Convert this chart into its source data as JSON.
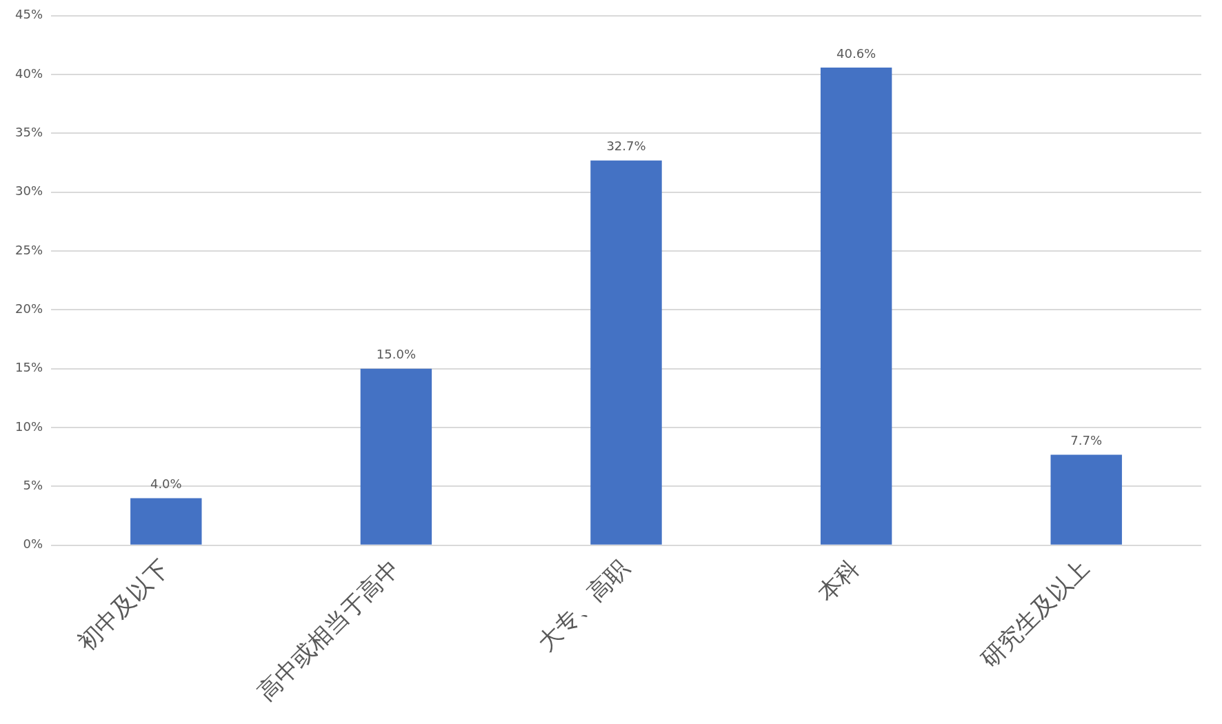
{
  "chart_data": {
    "type": "bar",
    "categories": [
      "初中及以下",
      "高中或相当于高中",
      "大专、高职",
      "本科",
      "研究生及以上"
    ],
    "values": [
      4.0,
      15.0,
      32.7,
      40.6,
      7.7
    ],
    "value_labels": [
      "4.0%",
      "15.0%",
      "32.7%",
      "40.6%",
      "7.7%"
    ],
    "color": "#4472c4",
    "ylim": [
      0,
      45
    ],
    "yticks": [
      {
        "value": 0,
        "label": "0%"
      },
      {
        "value": 5,
        "label": "5%"
      },
      {
        "value": 10,
        "label": "10%"
      },
      {
        "value": 15,
        "label": "15%"
      },
      {
        "value": 20,
        "label": "20%"
      },
      {
        "value": 25,
        "label": "25%"
      },
      {
        "value": 30,
        "label": "30%"
      },
      {
        "value": 35,
        "label": "35%"
      },
      {
        "value": 40,
        "label": "40%"
      },
      {
        "value": 45,
        "label": "45%"
      }
    ],
    "grid": "y"
  }
}
